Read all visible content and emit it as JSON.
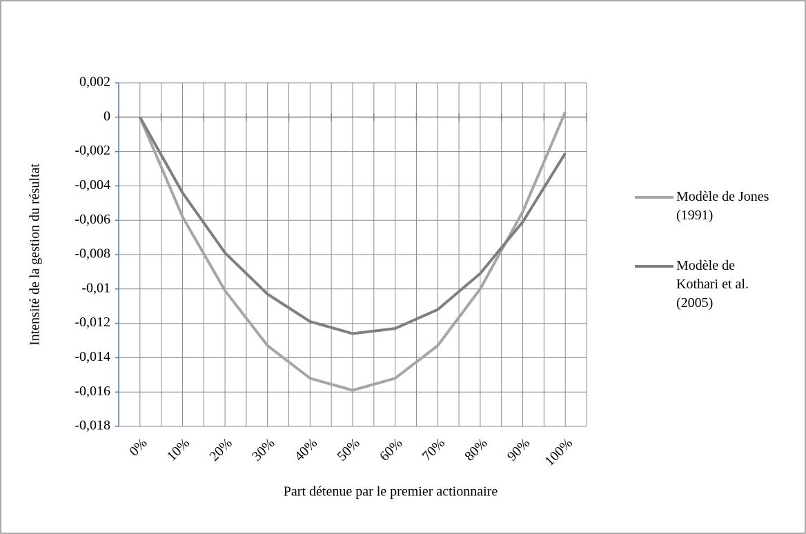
{
  "chart_data": {
    "type": "line",
    "y_label": "Intensité de la  gestion du résultat",
    "x_label": "Part détenue par le premier actionnaire",
    "categories": [
      "0%",
      "10%",
      "20%",
      "30%",
      "40%",
      "50%",
      "60%",
      "70%",
      "80%",
      "90%",
      "100%"
    ],
    "series": [
      {
        "name": "Modèle de Jones (1991)",
        "color": "#a6a6a6",
        "values": [
          0,
          -0.0058,
          -0.0101,
          -0.0133,
          -0.0152,
          -0.0159,
          -0.0152,
          -0.0133,
          -0.01,
          -0.0055,
          0.0003
        ]
      },
      {
        "name": "Modèle de Kothari et al. (2005)",
        "color": "#7f7f7f",
        "values": [
          0,
          -0.0044,
          -0.0079,
          -0.0103,
          -0.0119,
          -0.0126,
          -0.0123,
          -0.0112,
          -0.0091,
          -0.0061,
          -0.0021
        ]
      }
    ],
    "ylim": [
      -0.018,
      0.002
    ],
    "yticks": [
      {
        "value": 0.002,
        "label": "0,002"
      },
      0,
      {
        "value": -0.002,
        "label": "-0,002"
      },
      {
        "value": -0.004,
        "label": "-0,004"
      },
      {
        "value": -0.006,
        "label": "-0,006"
      },
      {
        "value": -0.008,
        "label": "-0,008"
      },
      {
        "value": -0.01,
        "label": "-0,01"
      },
      {
        "value": -0.012,
        "label": "-0,012"
      },
      {
        "value": -0.014,
        "label": "-0,014"
      },
      {
        "value": -0.016,
        "label": "-0,016"
      },
      {
        "value": -0.018,
        "label": "-0,018"
      }
    ],
    "grid": true
  }
}
